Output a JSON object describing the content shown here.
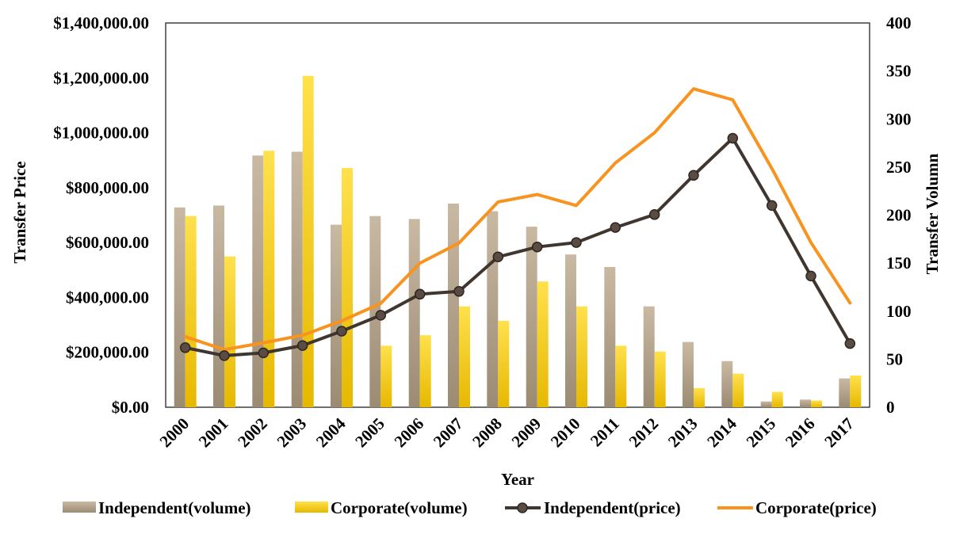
{
  "chart_data": {
    "type": "bar",
    "title": "",
    "xlabel": "Year",
    "ylabel": "Transfer Price",
    "y2label": "Transfer Volumn",
    "categories": [
      "2000",
      "2001",
      "2002",
      "2003",
      "2004",
      "2005",
      "2006",
      "2007",
      "2008",
      "2009",
      "2010",
      "2011",
      "2012",
      "2013",
      "2014",
      "2015",
      "2016",
      "2017"
    ],
    "ylim": [
      0,
      1400000
    ],
    "y2lim": [
      0,
      400
    ],
    "y_ticks": [
      0,
      200000,
      400000,
      600000,
      800000,
      1000000,
      1200000,
      1400000
    ],
    "y_tick_labels": [
      "$0.00",
      "$200,000.00",
      "$400,000.00",
      "$600,000.00",
      "$800,000.00",
      "$1,000,000.00",
      "$1,200,000.00",
      "$1,400,000.00"
    ],
    "y2_ticks": [
      0,
      50,
      100,
      150,
      200,
      250,
      300,
      350,
      400
    ],
    "y2_tick_labels": [
      "0",
      "50",
      "100",
      "150",
      "200",
      "250",
      "300",
      "350",
      "400"
    ],
    "legend_position": "bottom",
    "series": [
      {
        "name": "Independent(volume)",
        "kind": "bar",
        "axis": "right",
        "color": "#b8a68e",
        "color_dark": "#9c8b73",
        "values": [
          208,
          210,
          262,
          266,
          190,
          199,
          196,
          212,
          204,
          188,
          159,
          146,
          105,
          68,
          48,
          6,
          8,
          30
        ]
      },
      {
        "name": "Corporate(volume)",
        "kind": "bar",
        "axis": "right",
        "color": "#ffd11a",
        "color_dark": "#e8b400",
        "values": [
          199,
          157,
          267,
          345,
          249,
          64,
          75,
          105,
          90,
          131,
          105,
          64,
          58,
          20,
          35,
          16,
          7,
          33
        ]
      },
      {
        "name": "Independent(price)",
        "kind": "line",
        "axis": "left",
        "color": "#403630",
        "marker": "circle",
        "values": [
          217000,
          188000,
          198000,
          225000,
          277000,
          335000,
          412000,
          422000,
          548000,
          584000,
          600000,
          655000,
          702000,
          845000,
          980000,
          735000,
          478000,
          232000
        ]
      },
      {
        "name": "Corporate(price)",
        "kind": "line",
        "axis": "left",
        "color": "#f7931e",
        "marker": "none",
        "values": [
          257000,
          210000,
          235000,
          262000,
          315000,
          378000,
          525000,
          598000,
          748000,
          775000,
          735000,
          890000,
          1000000,
          1160000,
          1120000,
          870000,
          600000,
          380000
        ]
      }
    ]
  }
}
